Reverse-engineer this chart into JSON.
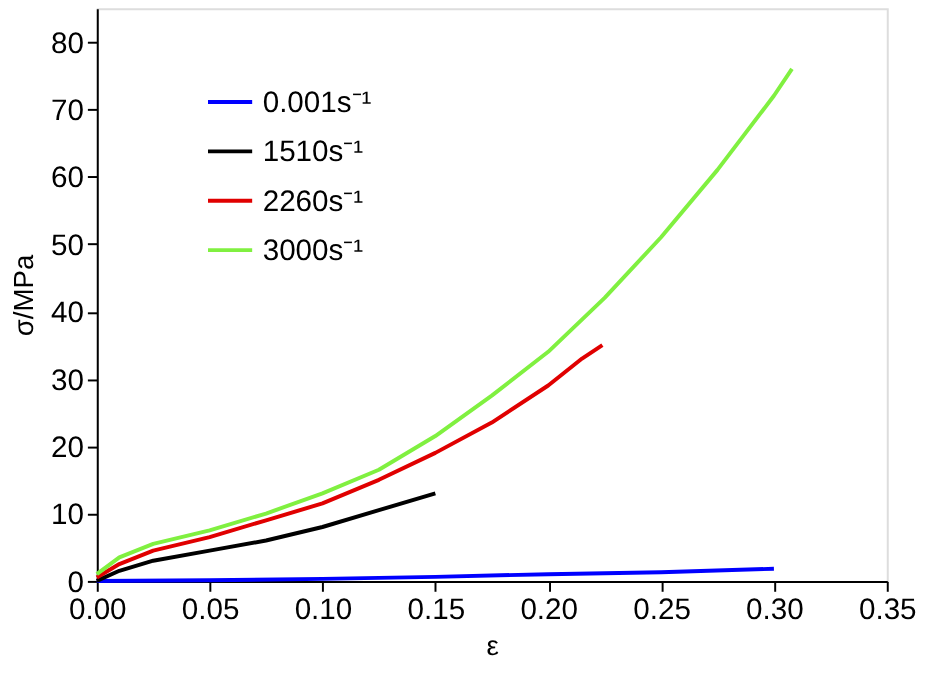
{
  "chart_data": {
    "type": "line",
    "xlabel": "ε",
    "ylabel": "σ/MPa",
    "xlim": [
      0,
      0.35
    ],
    "xticks": [
      {
        "value": 0,
        "label": "0.00"
      },
      {
        "value": 0.05,
        "label": "0.05"
      },
      {
        "value": 0.1,
        "label": "0.10"
      },
      {
        "value": 0.15,
        "label": "0.15"
      },
      {
        "value": 0.2,
        "label": "0.20"
      },
      {
        "value": 0.25,
        "label": "0.25"
      },
      {
        "value": 0.3,
        "label": "0.30"
      },
      {
        "value": 0.35,
        "label": "0.35"
      }
    ],
    "ylim": [
      0,
      85
    ],
    "yticks": [
      0,
      10,
      20,
      30,
      40,
      50,
      60,
      70,
      80
    ],
    "grid": false,
    "legend": "top left",
    "marker": "none",
    "line_style": "solid",
    "series": [
      {
        "name": "0.001s⁻¹",
        "color": "#0000ff",
        "x": [
          0,
          0.05,
          0.1,
          0.15,
          0.2,
          0.25,
          0.3
        ],
        "values": [
          0,
          0.1,
          0.3,
          0.6,
          1,
          1.3,
          1.8
        ]
      },
      {
        "name": "1510s⁻¹",
        "color": "#000000",
        "x": [
          0,
          0.01,
          0.025,
          0.05,
          0.075,
          0.1,
          0.125,
          0.15
        ],
        "values": [
          0,
          1.5,
          3,
          4.5,
          6,
          8,
          10.5,
          13
        ]
      },
      {
        "name": "2260s⁻¹",
        "color": "#e00000",
        "x": [
          0,
          0.01,
          0.025,
          0.05,
          0.075,
          0.1,
          0.125,
          0.15,
          0.175,
          0.2,
          0.215,
          0.224
        ],
        "values": [
          0.5,
          2.5,
          4.5,
          6.5,
          9,
          11.5,
          15,
          19,
          23.5,
          29,
          33,
          35
        ]
      },
      {
        "name": "3000s⁻¹",
        "color": "#80f040",
        "x": [
          0,
          0.01,
          0.025,
          0.05,
          0.075,
          0.1,
          0.125,
          0.15,
          0.175,
          0.2,
          0.225,
          0.25,
          0.275,
          0.3,
          0.308
        ],
        "values": [
          1,
          3.5,
          5.5,
          7.5,
          10,
          13,
          16.5,
          21.5,
          27.5,
          34,
          42,
          51,
          61,
          72,
          76
        ]
      }
    ]
  }
}
